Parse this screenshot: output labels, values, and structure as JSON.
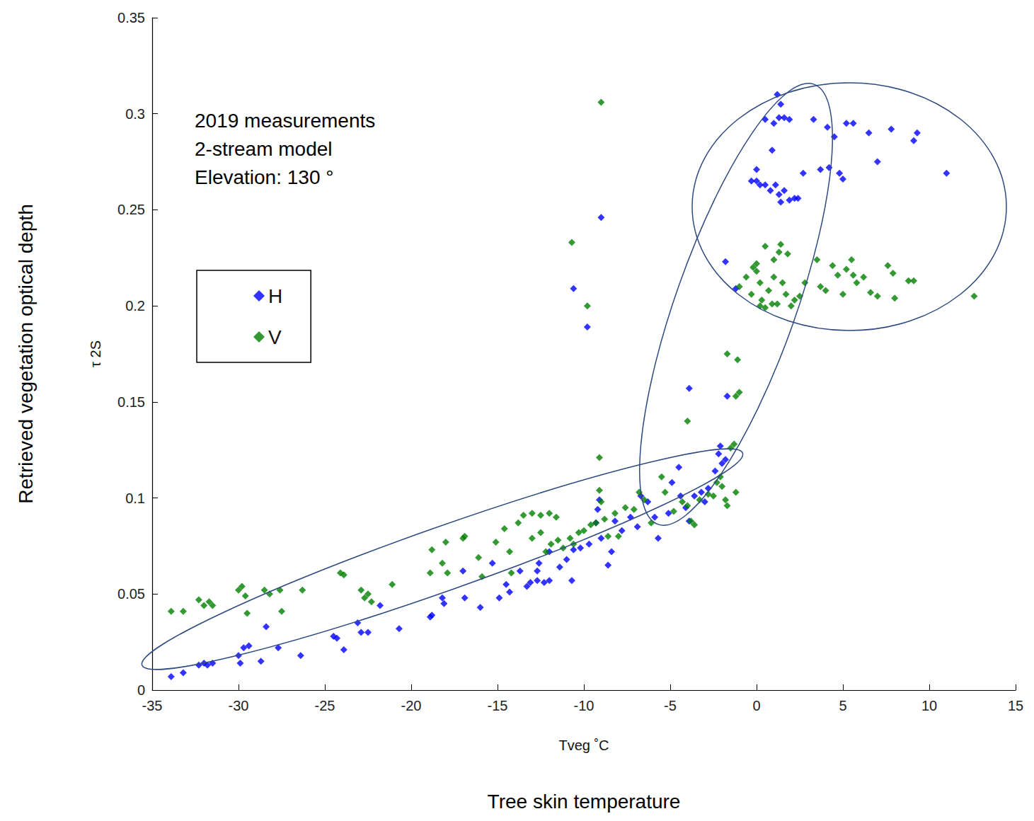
{
  "chart_data": {
    "type": "scatter",
    "annotations": [
      "2019 measurements",
      "2-stream model",
      "Elevation: 130 °"
    ],
    "y_axis_title": "Retrieved vegetation optical depth",
    "y_axis_subtitle": "τ 2S",
    "x_axis_title": "Tveg ˚C",
    "x_axis_subtitle": "Tree skin temperature",
    "xlim": [
      -35,
      15
    ],
    "xticks": [
      -35,
      -30,
      -25,
      -20,
      -15,
      -10,
      -5,
      0,
      5,
      10,
      15
    ],
    "ylim": [
      0,
      0.35
    ],
    "yticks": [
      0,
      0.05,
      0.1,
      0.15,
      0.2,
      0.25,
      0.3,
      0.35
    ],
    "grid": false,
    "legend": "left",
    "series": [
      {
        "name": "H",
        "color": "#0000ff",
        "marker": "diamond",
        "values": [
          [
            -33.9,
            0.007
          ],
          [
            -33.2,
            0.009
          ],
          [
            -32.3,
            0.013
          ],
          [
            -32.0,
            0.014
          ],
          [
            -31.8,
            0.013
          ],
          [
            -31.5,
            0.014
          ],
          [
            -30.0,
            0.018
          ],
          [
            -29.9,
            0.014
          ],
          [
            -29.7,
            0.022
          ],
          [
            -29.4,
            0.023
          ],
          [
            -28.7,
            0.015
          ],
          [
            -28.4,
            0.033
          ],
          [
            -27.7,
            0.022
          ],
          [
            -26.4,
            0.018
          ],
          [
            -24.5,
            0.028
          ],
          [
            -24.3,
            0.027
          ],
          [
            -23.9,
            0.021
          ],
          [
            -23.1,
            0.035
          ],
          [
            -22.9,
            0.03
          ],
          [
            -22.5,
            0.03
          ],
          [
            -21.8,
            0.044
          ],
          [
            -20.7,
            0.032
          ],
          [
            -18.9,
            0.038
          ],
          [
            -18.8,
            0.039
          ],
          [
            -18.2,
            0.048
          ],
          [
            -18.1,
            0.045
          ],
          [
            -17.0,
            0.062
          ],
          [
            -16.9,
            0.048
          ],
          [
            -16.0,
            0.043
          ],
          [
            -15.3,
            0.066
          ],
          [
            -14.9,
            0.048
          ],
          [
            -14.5,
            0.055
          ],
          [
            -14.3,
            0.051
          ],
          [
            -13.7,
            0.062
          ],
          [
            -13.3,
            0.054
          ],
          [
            -13.1,
            0.056
          ],
          [
            -12.7,
            0.057
          ],
          [
            -12.3,
            0.056
          ],
          [
            -12.0,
            0.057
          ],
          [
            -12.7,
            0.062
          ],
          [
            -12.6,
            0.066
          ],
          [
            -12.0,
            0.072
          ],
          [
            -11.4,
            0.064
          ],
          [
            -11.0,
            0.068
          ],
          [
            -10.6,
            0.073
          ],
          [
            -10.2,
            0.074
          ],
          [
            -9.7,
            0.076
          ],
          [
            -10.7,
            0.057
          ],
          [
            -9.3,
            0.087
          ],
          [
            -9.2,
            0.094
          ],
          [
            -9.1,
            0.099
          ],
          [
            -9.0,
            0.079
          ],
          [
            -8.6,
            0.065
          ],
          [
            -8.4,
            0.072
          ],
          [
            -8.2,
            0.088
          ],
          [
            -7.8,
            0.083
          ],
          [
            -7.3,
            0.09
          ],
          [
            -6.9,
            0.085
          ],
          [
            -6.7,
            0.101
          ],
          [
            -6.3,
            0.098
          ],
          [
            -5.9,
            0.09
          ],
          [
            -5.7,
            0.079
          ],
          [
            -5.1,
            0.092
          ],
          [
            -4.9,
            0.108
          ],
          [
            -4.5,
            0.116
          ],
          [
            -4.4,
            0.101
          ],
          [
            -4.1,
            0.095
          ],
          [
            -3.9,
            0.088
          ],
          [
            -3.6,
            0.101
          ],
          [
            -3.2,
            0.103
          ],
          [
            -3.0,
            0.098
          ],
          [
            -2.8,
            0.105
          ],
          [
            -2.4,
            0.114
          ],
          [
            -2.2,
            0.123
          ],
          [
            -2.1,
            0.127
          ],
          [
            -2.0,
            0.118
          ],
          [
            -1.8,
            0.12
          ],
          [
            -3.9,
            0.157
          ],
          [
            -1.7,
            0.153
          ],
          [
            -10.6,
            0.209
          ],
          [
            -9.8,
            0.189
          ],
          [
            -9.0,
            0.246
          ],
          [
            -1.8,
            0.223
          ],
          [
            -1.2,
            0.209
          ],
          [
            -0.3,
            0.265
          ],
          [
            0.0,
            0.271
          ],
          [
            0.2,
            0.263
          ],
          [
            0.5,
            0.263
          ],
          [
            0.8,
            0.26
          ],
          [
            1.1,
            0.263
          ],
          [
            1.3,
            0.258
          ],
          [
            1.6,
            0.26
          ],
          [
            1.9,
            0.255
          ],
          [
            2.2,
            0.256
          ],
          [
            2.4,
            0.256
          ],
          [
            1.4,
            0.254
          ],
          [
            0.0,
            0.265
          ],
          [
            0.9,
            0.281
          ],
          [
            0.5,
            0.297
          ],
          [
            1.0,
            0.295
          ],
          [
            1.2,
            0.31
          ],
          [
            1.4,
            0.305
          ],
          [
            1.3,
            0.298
          ],
          [
            1.6,
            0.298
          ],
          [
            1.9,
            0.297
          ],
          [
            2.7,
            0.269
          ],
          [
            3.3,
            0.297
          ],
          [
            3.7,
            0.271
          ],
          [
            4.1,
            0.293
          ],
          [
            4.2,
            0.272
          ],
          [
            4.5,
            0.288
          ],
          [
            4.8,
            0.269
          ],
          [
            5.0,
            0.266
          ],
          [
            5.2,
            0.295
          ],
          [
            5.6,
            0.295
          ],
          [
            6.5,
            0.29
          ],
          [
            7.0,
            0.275
          ],
          [
            7.8,
            0.292
          ],
          [
            9.1,
            0.286
          ],
          [
            9.3,
            0.29
          ],
          [
            11.0,
            0.269
          ]
        ]
      },
      {
        "name": "V",
        "color": "#008000",
        "marker": "diamond",
        "values": [
          [
            -33.9,
            0.041
          ],
          [
            -33.2,
            0.041
          ],
          [
            -32.3,
            0.047
          ],
          [
            -32.0,
            0.044
          ],
          [
            -31.7,
            0.046
          ],
          [
            -31.5,
            0.044
          ],
          [
            -30.0,
            0.052
          ],
          [
            -29.8,
            0.054
          ],
          [
            -29.6,
            0.049
          ],
          [
            -29.5,
            0.04
          ],
          [
            -28.5,
            0.052
          ],
          [
            -28.2,
            0.05
          ],
          [
            -27.6,
            0.052
          ],
          [
            -27.5,
            0.041
          ],
          [
            -26.3,
            0.052
          ],
          [
            -24.1,
            0.061
          ],
          [
            -23.9,
            0.06
          ],
          [
            -22.9,
            0.052
          ],
          [
            -22.7,
            0.048
          ],
          [
            -22.5,
            0.05
          ],
          [
            -22.3,
            0.046
          ],
          [
            -21.1,
            0.055
          ],
          [
            -18.8,
            0.073
          ],
          [
            -18.9,
            0.061
          ],
          [
            -18.2,
            0.066
          ],
          [
            -18.0,
            0.077
          ],
          [
            -17.9,
            0.061
          ],
          [
            -17.0,
            0.079
          ],
          [
            -16.9,
            0.08
          ],
          [
            -16.1,
            0.069
          ],
          [
            -15.9,
            0.059
          ],
          [
            -15.1,
            0.077
          ],
          [
            -14.6,
            0.084
          ],
          [
            -14.3,
            0.072
          ],
          [
            -14.2,
            0.061
          ],
          [
            -13.8,
            0.087
          ],
          [
            -13.5,
            0.091
          ],
          [
            -13.0,
            0.092
          ],
          [
            -12.5,
            0.091
          ],
          [
            -12.0,
            0.092
          ],
          [
            -11.6,
            0.09
          ],
          [
            -13.0,
            0.079
          ],
          [
            -12.5,
            0.082
          ],
          [
            -12.2,
            0.072
          ],
          [
            -11.9,
            0.076
          ],
          [
            -11.5,
            0.078
          ],
          [
            -11.2,
            0.074
          ],
          [
            -10.8,
            0.079
          ],
          [
            -10.6,
            0.076
          ],
          [
            -10.3,
            0.082
          ],
          [
            -10.0,
            0.083
          ],
          [
            -9.6,
            0.086
          ],
          [
            -9.3,
            0.087
          ],
          [
            -9.1,
            0.104
          ],
          [
            -9.0,
            0.098
          ],
          [
            -9.1,
            0.121
          ],
          [
            -8.8,
            0.089
          ],
          [
            -8.6,
            0.08
          ],
          [
            -8.2,
            0.092
          ],
          [
            -8.0,
            0.08
          ],
          [
            -7.6,
            0.095
          ],
          [
            -7.1,
            0.094
          ],
          [
            -6.8,
            0.103
          ],
          [
            -6.5,
            0.099
          ],
          [
            -6.1,
            0.087
          ],
          [
            -5.5,
            0.111
          ],
          [
            -5.3,
            0.103
          ],
          [
            -4.8,
            0.093
          ],
          [
            -4.3,
            0.098
          ],
          [
            -4.0,
            0.096
          ],
          [
            -3.8,
            0.088
          ],
          [
            -3.6,
            0.086
          ],
          [
            -3.3,
            0.099
          ],
          [
            -2.8,
            0.102
          ],
          [
            -2.5,
            0.101
          ],
          [
            -2.3,
            0.108
          ],
          [
            -2.1,
            0.111
          ],
          [
            -2.0,
            0.106
          ],
          [
            -1.8,
            0.099
          ],
          [
            -1.7,
            0.096
          ],
          [
            -1.5,
            0.126
          ],
          [
            -1.3,
            0.128
          ],
          [
            -1.2,
            0.103
          ],
          [
            -4.0,
            0.14
          ],
          [
            -1.7,
            0.175
          ],
          [
            -1.1,
            0.172
          ],
          [
            -1.0,
            0.155
          ],
          [
            -1.2,
            0.153
          ],
          [
            -10.7,
            0.233
          ],
          [
            -9.8,
            0.2
          ],
          [
            -9.0,
            0.306
          ],
          [
            -1.0,
            0.21
          ],
          [
            -0.6,
            0.215
          ],
          [
            -0.3,
            0.206
          ],
          [
            0.0,
            0.218
          ],
          [
            0.2,
            0.212
          ],
          [
            0.3,
            0.203
          ],
          [
            0.5,
            0.231
          ],
          [
            0.7,
            0.208
          ],
          [
            0.9,
            0.201
          ],
          [
            1.0,
            0.224
          ],
          [
            1.3,
            0.228
          ],
          [
            1.4,
            0.232
          ],
          [
            1.5,
            0.212
          ],
          [
            1.7,
            0.206
          ],
          [
            1.8,
            0.227
          ],
          [
            2.0,
            0.2
          ],
          [
            2.2,
            0.203
          ],
          [
            2.5,
            0.205
          ],
          [
            2.8,
            0.212
          ],
          [
            3.5,
            0.224
          ],
          [
            3.7,
            0.21
          ],
          [
            4.0,
            0.208
          ],
          [
            4.4,
            0.221
          ],
          [
            4.7,
            0.216
          ],
          [
            5.0,
            0.206
          ],
          [
            5.2,
            0.219
          ],
          [
            5.5,
            0.224
          ],
          [
            5.6,
            0.216
          ],
          [
            5.8,
            0.212
          ],
          [
            6.2,
            0.215
          ],
          [
            6.6,
            0.207
          ],
          [
            7.0,
            0.205
          ],
          [
            7.6,
            0.221
          ],
          [
            7.9,
            0.217
          ],
          [
            8.0,
            0.204
          ],
          [
            8.8,
            0.213
          ],
          [
            9.1,
            0.213
          ],
          [
            12.6,
            0.205
          ],
          [
            0.2,
            0.2
          ],
          [
            0.5,
            0.199
          ],
          [
            1.2,
            0.201
          ],
          [
            0.0,
            0.222
          ],
          [
            -0.2,
            0.22
          ],
          [
            1.0,
            0.215
          ]
        ]
      }
    ]
  }
}
